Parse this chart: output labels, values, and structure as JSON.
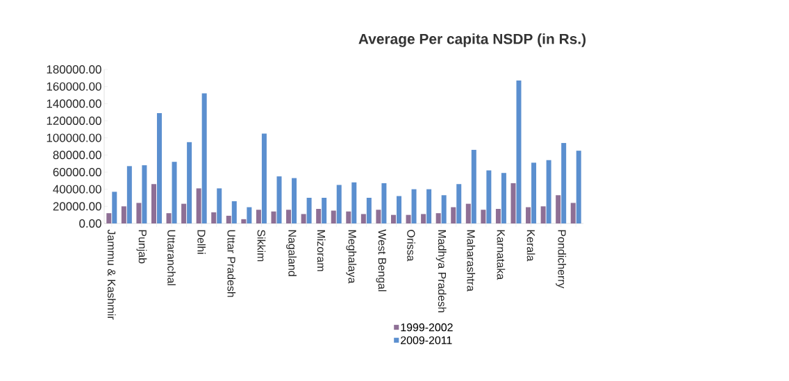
{
  "chart_data": {
    "type": "bar",
    "title": "Average Per capita NSDP  (in Rs.)",
    "categories": [
      "Jammu & Kashmir",
      null,
      "Punjab",
      null,
      "Uttaranchal",
      null,
      "Delhi",
      null,
      "Uttar Pradesh",
      null,
      "Sikkim",
      null,
      "Nagaland",
      null,
      "Mizoram",
      null,
      "Meghalaya",
      null,
      "West Bengal",
      null,
      "Orissa",
      null,
      "Madhya Pradesh",
      null,
      "Maharashtra",
      null,
      "Karnataka",
      null,
      "Kerala",
      null,
      "Pondicherry",
      null
    ],
    "series": [
      {
        "name": "1999-2002",
        "color": "#8e6f95",
        "values": [
          12000,
          20000,
          24000,
          46000,
          12000,
          23000,
          41000,
          13000,
          9000,
          5000,
          16000,
          14000,
          16000,
          11000,
          17000,
          15000,
          14000,
          11000,
          16000,
          10000,
          10000,
          11000,
          12000,
          19000,
          23000,
          16000,
          17000,
          47000,
          19000,
          20000,
          33000,
          24000
        ]
      },
      {
        "name": "2009-2011",
        "color": "#5b8fcf",
        "values": [
          37000,
          67000,
          68000,
          129000,
          72000,
          95000,
          152000,
          41000,
          26000,
          19000,
          105000,
          55000,
          53000,
          30000,
          30000,
          45000,
          48000,
          30000,
          47000,
          32000,
          40000,
          40000,
          33000,
          46000,
          86000,
          62000,
          59000,
          167000,
          71000,
          74000,
          94000,
          85000
        ]
      }
    ],
    "ylim": [
      0,
      180000
    ],
    "yticks": [
      {
        "value": 0,
        "label": "0.00"
      },
      {
        "value": 20000,
        "label": "20000.00"
      },
      {
        "value": 40000,
        "label": "40000.00"
      },
      {
        "value": 60000,
        "label": "60000.00"
      },
      {
        "value": 80000,
        "label": "80000.00"
      },
      {
        "value": 100000,
        "label": "100000.00"
      },
      {
        "value": 120000,
        "label": "120000.00"
      },
      {
        "value": 140000,
        "label": "140000.00"
      },
      {
        "value": 160000,
        "label": "160000.00"
      },
      {
        "value": 180000,
        "label": "180000.00"
      }
    ],
    "grid": false,
    "legend": "bottom"
  }
}
